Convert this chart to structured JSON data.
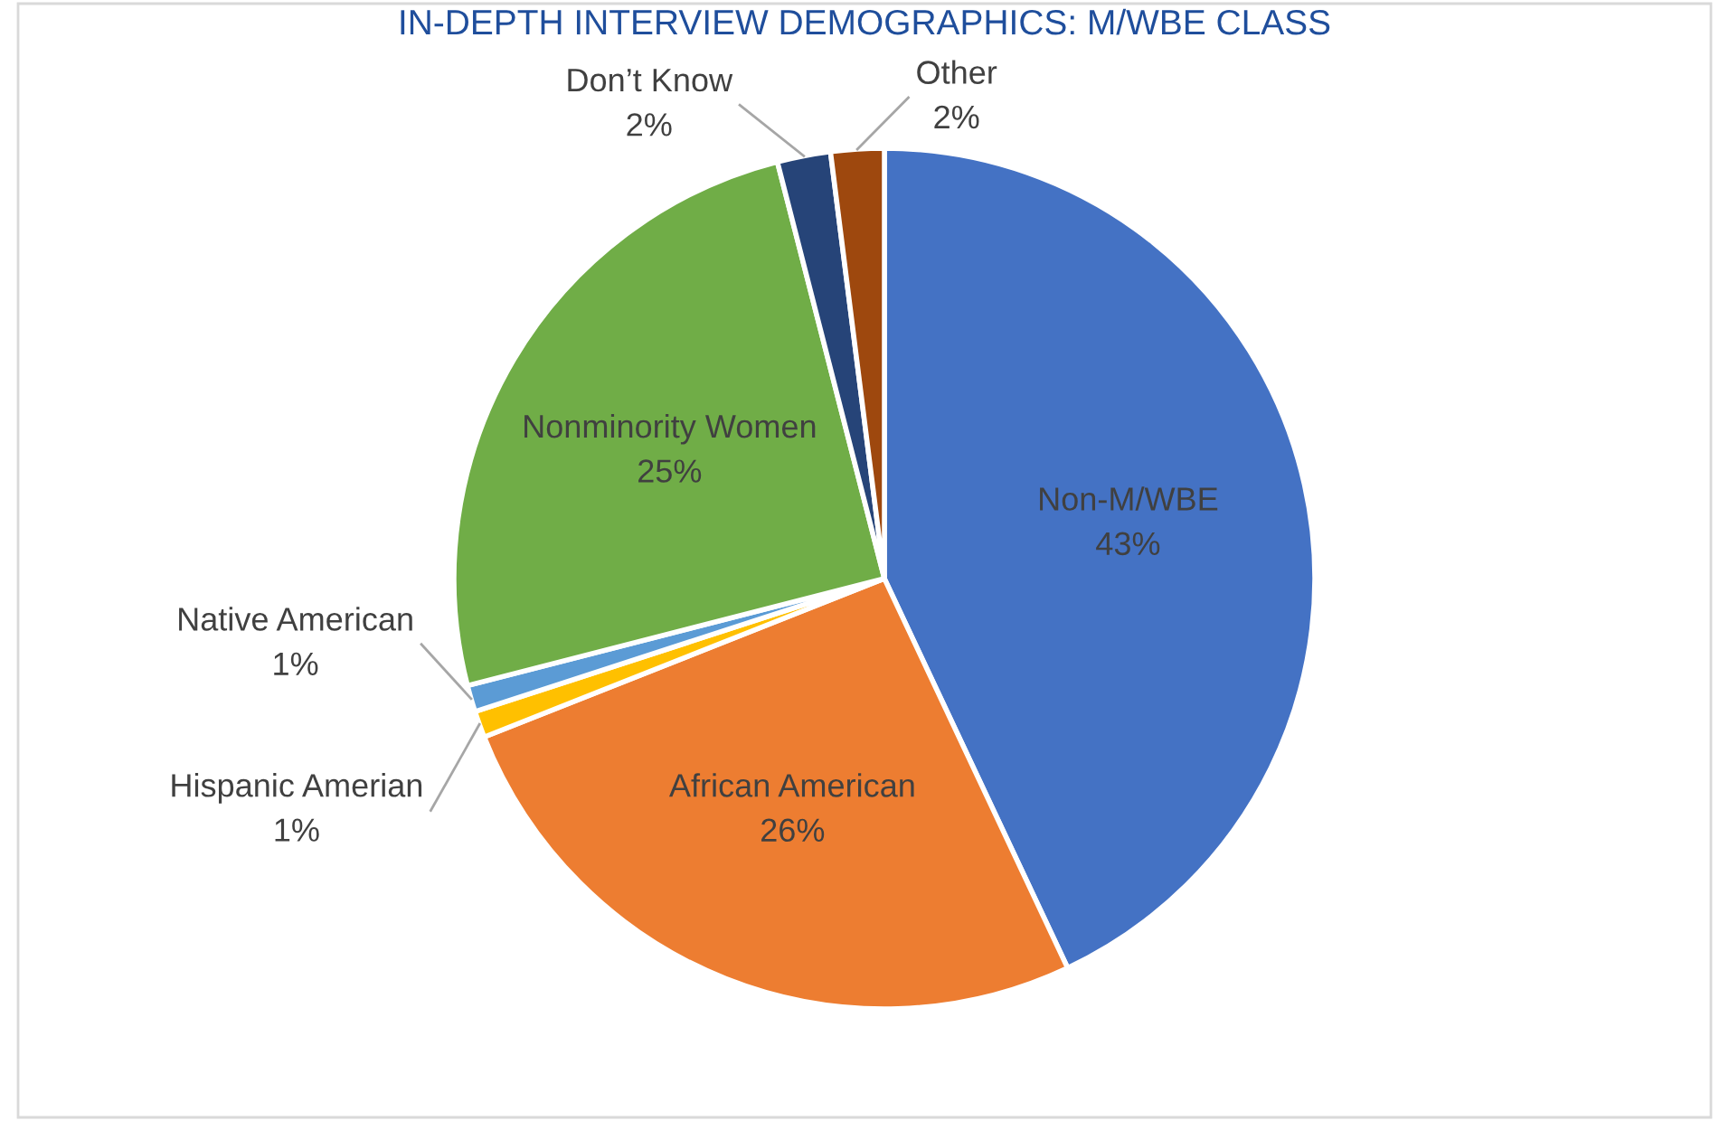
{
  "chart_data": {
    "type": "pie",
    "title": "IN-DEPTH INTERVIEW DEMOGRAPHICS: M/WBE CLASS",
    "categories": [
      "Non-M/WBE",
      "African American",
      "Hispanic Amerian",
      "Native American",
      "Nonminority Women",
      "Don’t Know",
      "Other"
    ],
    "values": [
      43,
      26,
      1,
      1,
      25,
      2,
      2
    ],
    "value_labels": [
      "43%",
      "26%",
      "1%",
      "1%",
      "25%",
      "2%",
      "2%"
    ],
    "colors": [
      "#4472c4",
      "#ed7d31",
      "#ffc000",
      "#5b9bd5",
      "#70ad47",
      "#264478",
      "#9e480e"
    ]
  }
}
